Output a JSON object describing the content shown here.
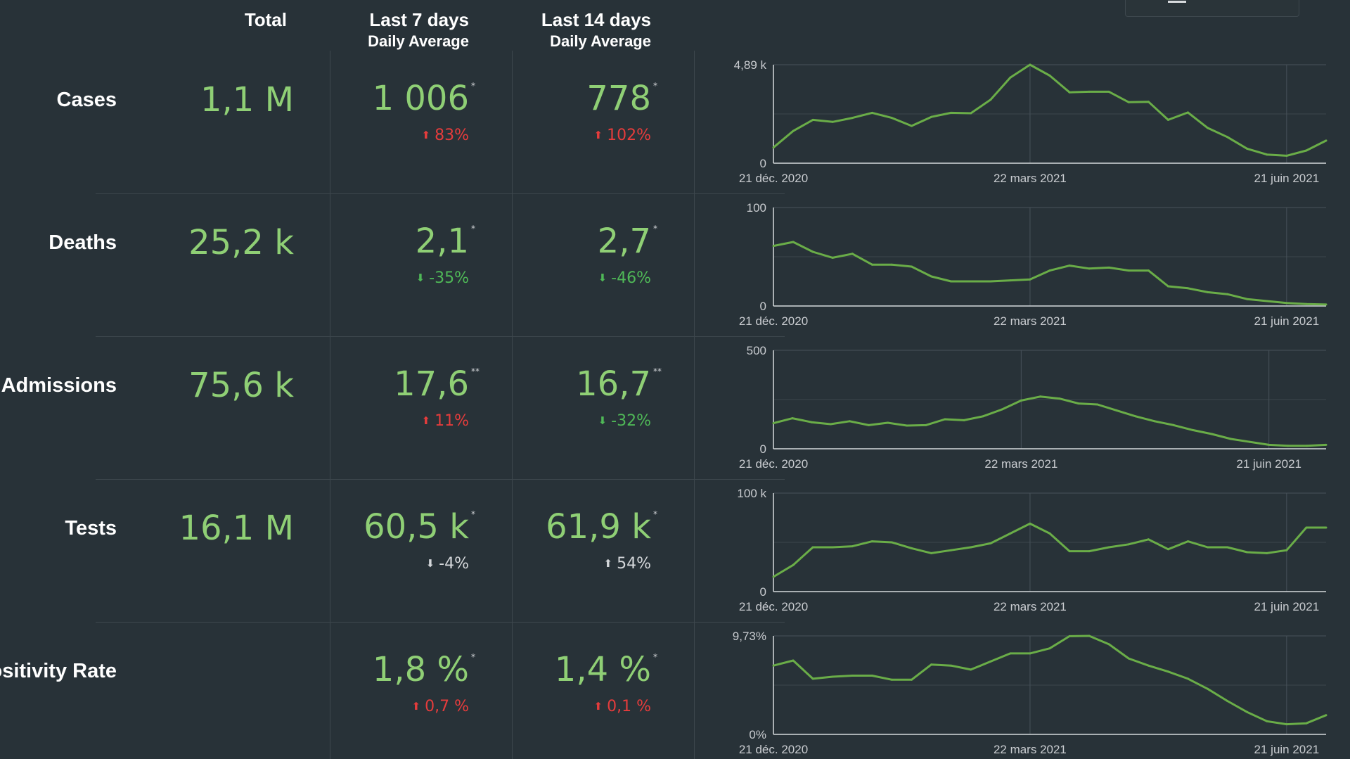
{
  "header": {
    "total": "Total",
    "last7": "Last 7 days",
    "last7_sub": "Daily Average",
    "last14": "Last 14 days",
    "last14_sub": "Daily Average"
  },
  "colors": {
    "background": "#283238",
    "value_green": "#8fcf75",
    "line_green": "#6aad48",
    "increase_red": "#e53c3c",
    "decrease_green": "#4fb857",
    "neutral_grey": "#d4d7da"
  },
  "rows": [
    {
      "label": "Cases",
      "total": "1,1 M",
      "avg7": "1 006",
      "avg7_mark": "*",
      "delta7": "83%",
      "delta7_dir": "up",
      "delta7_color": "red",
      "avg14": "778",
      "avg14_mark": "*",
      "delta14": "102%",
      "delta14_dir": "up",
      "delta14_color": "red"
    },
    {
      "label": "Deaths",
      "total": "25,2 k",
      "avg7": "2,1",
      "avg7_mark": "*",
      "delta7": "-35%",
      "delta7_dir": "down",
      "delta7_color": "green",
      "avg14": "2,7",
      "avg14_mark": "*",
      "delta14": "-46%",
      "delta14_dir": "down",
      "delta14_color": "green"
    },
    {
      "label": "Hospital Admissions",
      "total": "75,6 k",
      "avg7": "17,6",
      "avg7_mark": "**",
      "delta7": "11%",
      "delta7_dir": "up",
      "delta7_color": "red",
      "avg14": "16,7",
      "avg14_mark": "**",
      "delta14": "-32%",
      "delta14_dir": "down",
      "delta14_color": "green"
    },
    {
      "label": "Tests",
      "total": "16,1 M",
      "avg7": "60,5 k",
      "avg7_mark": "*",
      "delta7": "-4%",
      "delta7_dir": "down",
      "delta7_color": "grey",
      "avg14": "61,9 k",
      "avg14_mark": "*",
      "delta14": "54%",
      "delta14_dir": "up",
      "delta14_color": "grey"
    },
    {
      "label": "Positivity Rate",
      "total": "",
      "avg7": "1,8 %",
      "avg7_mark": "*",
      "delta7": "0,7 %",
      "delta7_dir": "up",
      "delta7_color": "red",
      "avg14": "1,4 %",
      "avg14_mark": "*",
      "delta14": "0,1 %",
      "delta14_dir": "up",
      "delta14_color": "red"
    }
  ],
  "chart_data": [
    {
      "type": "line",
      "title": "",
      "x_ticks": [
        "21 déc. 2020",
        "22 mars 2021",
        "21 juin 2021"
      ],
      "x_tick_index": [
        0,
        13,
        26
      ],
      "y_tick_labels": [
        "0",
        "4,89 k"
      ],
      "ylim": [
        0,
        4890
      ],
      "grid": true,
      "series": [
        {
          "values": [
            780,
            1600,
            2150,
            2050,
            2250,
            2500,
            2250,
            1850,
            2300,
            2500,
            2480,
            3150,
            4250,
            4890,
            4350,
            3520,
            3550,
            3550,
            3030,
            3050,
            2150,
            2520,
            1750,
            1300,
            720,
            430,
            370,
            630,
            1120
          ]
        }
      ]
    },
    {
      "type": "line",
      "title": "",
      "x_ticks": [
        "21 déc. 2020",
        "22 mars 2021",
        "21 juin 2021"
      ],
      "x_tick_index": [
        0,
        13,
        26
      ],
      "y_tick_labels": [
        "0",
        "100"
      ],
      "ylim": [
        0,
        100
      ],
      "grid": true,
      "series": [
        {
          "values": [
            61,
            65,
            55,
            49,
            53,
            42,
            42,
            40,
            30,
            25,
            25,
            25,
            26,
            27,
            36,
            41,
            38,
            39,
            36,
            36,
            20,
            18,
            14,
            12,
            7,
            5,
            3,
            2,
            1.5
          ]
        }
      ]
    },
    {
      "type": "line",
      "title": "",
      "x_ticks": [
        "21 déc. 2020",
        "22 mars 2021",
        "21 juin 2021"
      ],
      "x_tick_index": [
        0,
        13,
        26
      ],
      "y_tick_labels": [
        "0",
        "500"
      ],
      "ylim": [
        0,
        500
      ],
      "grid": true,
      "series": [
        {
          "values": [
            130,
            155,
            135,
            125,
            140,
            120,
            132,
            118,
            120,
            150,
            145,
            165,
            200,
            245,
            265,
            255,
            230,
            225,
            195,
            165,
            140,
            120,
            95,
            75,
            50,
            35,
            20,
            15,
            15,
            20
          ]
        }
      ]
    },
    {
      "type": "line",
      "title": "",
      "x_ticks": [
        "21 déc. 2020",
        "22 mars 2021",
        "21 juin 2021"
      ],
      "x_tick_index": [
        0,
        13,
        26
      ],
      "y_tick_labels": [
        "0",
        "100 k"
      ],
      "ylim": [
        0,
        100000
      ],
      "grid": true,
      "series": [
        {
          "values": [
            15000,
            27000,
            45000,
            45000,
            46000,
            51000,
            50000,
            44000,
            39000,
            42000,
            45000,
            49000,
            59000,
            69000,
            59000,
            41000,
            41000,
            45000,
            48000,
            53000,
            43000,
            51000,
            45000,
            45000,
            40000,
            39000,
            42000,
            65000,
            65000
          ]
        }
      ]
    },
    {
      "type": "line",
      "title": "",
      "x_ticks": [
        "21 déc. 2020",
        "22 mars 2021",
        "21 juin 2021"
      ],
      "x_tick_index": [
        0,
        13,
        26
      ],
      "y_tick_labels": [
        "0%",
        "9,73%"
      ],
      "ylim": [
        0,
        9.73
      ],
      "grid": true,
      "series": [
        {
          "values": [
            6.8,
            7.3,
            5.5,
            5.7,
            5.8,
            5.8,
            5.4,
            5.4,
            6.9,
            6.8,
            6.4,
            7.2,
            8.0,
            8.0,
            8.5,
            9.7,
            9.73,
            8.9,
            7.5,
            6.8,
            6.2,
            5.5,
            4.5,
            3.3,
            2.2,
            1.3,
            1.0,
            1.1,
            1.9
          ]
        }
      ]
    }
  ]
}
